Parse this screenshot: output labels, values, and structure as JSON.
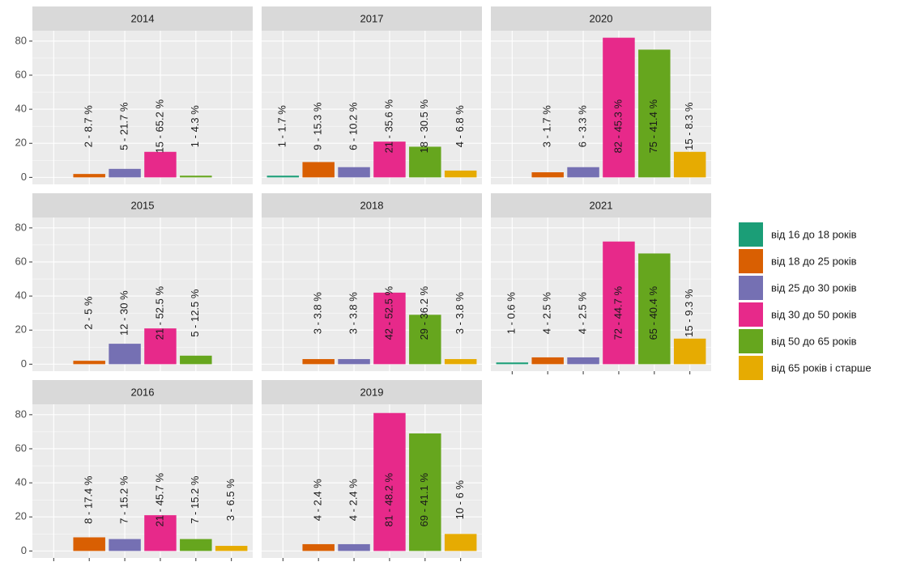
{
  "chart_data": {
    "type": "bar",
    "categories": [
      "від 16 до 18 років",
      "від 18 до 25 років",
      "від 25 до 30 років",
      "від 30 до 50 років",
      "від 50 до 65 років",
      "від 65 років і старше"
    ],
    "colors": [
      "#1b9e77",
      "#d95f02",
      "#7570b3",
      "#e7298a",
      "#66a61e",
      "#e6ab02"
    ],
    "ylim": [
      -4.1,
      86.1
    ],
    "yticks": [
      0,
      20,
      40,
      60,
      80
    ],
    "grid": true,
    "legend": "right",
    "facets": [
      {
        "title": "2014",
        "values": [
          null,
          2,
          5,
          15,
          1,
          null
        ],
        "value_labels": [
          null,
          "2 - 8.7 %",
          "5 - 21.7 %",
          "15 - 65.2 %",
          "1 - 4.3 %",
          null
        ]
      },
      {
        "title": "2017",
        "values": [
          1,
          9,
          6,
          21,
          18,
          4
        ],
        "value_labels": [
          "1 - 1.7 %",
          "9 - 15.3 %",
          "6 - 10.2 %",
          "21 - 35.6 %",
          "18 - 30.5 %",
          "4 - 6.8 %"
        ]
      },
      {
        "title": "2020",
        "values": [
          null,
          3,
          6,
          82,
          75,
          15
        ],
        "value_labels": [
          null,
          "3 - 1.7 %",
          "6 - 3.3 %",
          "82 - 45.3 %",
          "75 - 41.4 %",
          "15 - 8.3 %"
        ]
      },
      {
        "title": "2015",
        "values": [
          null,
          2,
          12,
          21,
          5,
          null
        ],
        "value_labels": [
          null,
          "2 - 5 %",
          "12 - 30 %",
          "21 - 52.5 %",
          "5 - 12.5 %",
          null
        ]
      },
      {
        "title": "2018",
        "values": [
          null,
          3,
          3,
          42,
          29,
          3
        ],
        "value_labels": [
          null,
          "3 - 3.8 %",
          "3 - 3.8 %",
          "42 - 52.5 %",
          "29 - 36.2 %",
          "3 - 3.8 %"
        ]
      },
      {
        "title": "2021",
        "values": [
          1,
          4,
          4,
          72,
          65,
          15
        ],
        "value_labels": [
          "1 - 0.6 %",
          "4 - 2.5 %",
          "4 - 2.5 %",
          "72 - 44.7 %",
          "65 - 40.4 %",
          "15 - 9.3 %"
        ]
      },
      {
        "title": "2016",
        "values": [
          null,
          8,
          7,
          21,
          7,
          3
        ],
        "value_labels": [
          null,
          "8 - 17.4 %",
          "7 - 15.2 %",
          "21 - 45.7 %",
          "7 - 15.2 %",
          "3 - 6.5 %"
        ]
      },
      {
        "title": "2019",
        "values": [
          null,
          4,
          4,
          81,
          69,
          10
        ],
        "value_labels": [
          null,
          "4 - 2.4 %",
          "4 - 2.4 %",
          "81 - 48.2 %",
          "69 - 41.1 %",
          "10 - 6 %"
        ]
      }
    ]
  }
}
